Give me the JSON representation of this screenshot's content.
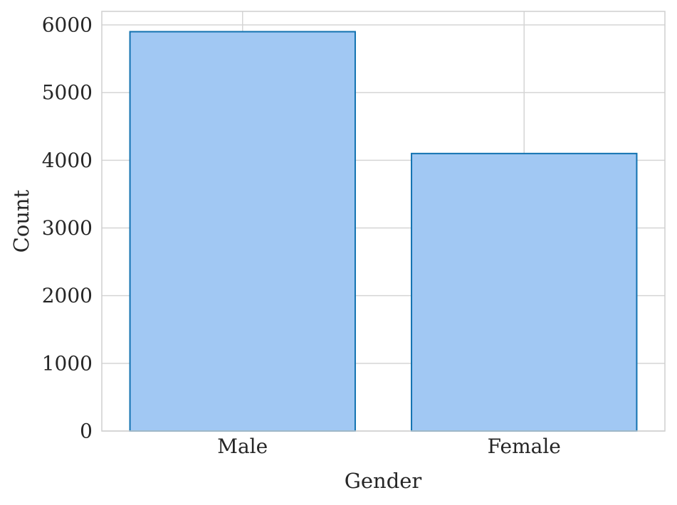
{
  "chart_data": {
    "type": "bar",
    "categories": [
      "Male",
      "Female"
    ],
    "values": [
      5900,
      4100
    ],
    "xlabel": "Gender",
    "ylabel": "Count",
    "ylim": [
      0,
      6200
    ],
    "yticks": [
      0,
      1000,
      2000,
      3000,
      4000,
      5000,
      6000
    ],
    "ytick_labels": [
      "0",
      "1000",
      "2000",
      "3000",
      "4000",
      "5000",
      "6000"
    ],
    "grid": true,
    "colors": {
      "bar_fill": "#a1c8f3",
      "bar_edge": "#1172b0",
      "grid": "#d5d5d5",
      "spine": "#cfcfcf",
      "text": "#262626"
    }
  }
}
